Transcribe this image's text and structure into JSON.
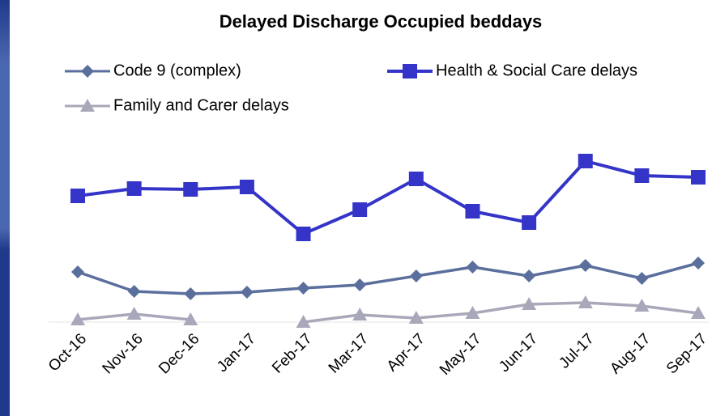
{
  "chart_data": {
    "type": "line",
    "title": "Delayed Discharge Occupied beddays",
    "categories": [
      "Oct-16",
      "Nov-16",
      "Dec-16",
      "Jan-17",
      "Feb-17",
      "Mar-17",
      "Apr-17",
      "May-17",
      "Jun-17",
      "Jul-17",
      "Aug-17",
      "Sep-17"
    ],
    "series": [
      {
        "name": "Code 9 (complex)",
        "color": "#5b6f9c",
        "marker": "diamond",
        "values": [
          62,
          38,
          35,
          37,
          42,
          46,
          57,
          68,
          57,
          70,
          54,
          73
        ]
      },
      {
        "name": "Health & Social Care delays",
        "color": "#3434c8",
        "marker": "square",
        "values": [
          156,
          165,
          164,
          167,
          109,
          139,
          177,
          137,
          123,
          199,
          181,
          179
        ]
      },
      {
        "name": "Family and Carer delays",
        "color": "#a8a8ba",
        "marker": "triangle",
        "values": [
          3,
          10,
          3,
          null,
          0,
          9,
          5,
          11,
          22,
          24,
          20,
          11
        ]
      }
    ],
    "ylim": [
      0,
      240
    ]
  }
}
